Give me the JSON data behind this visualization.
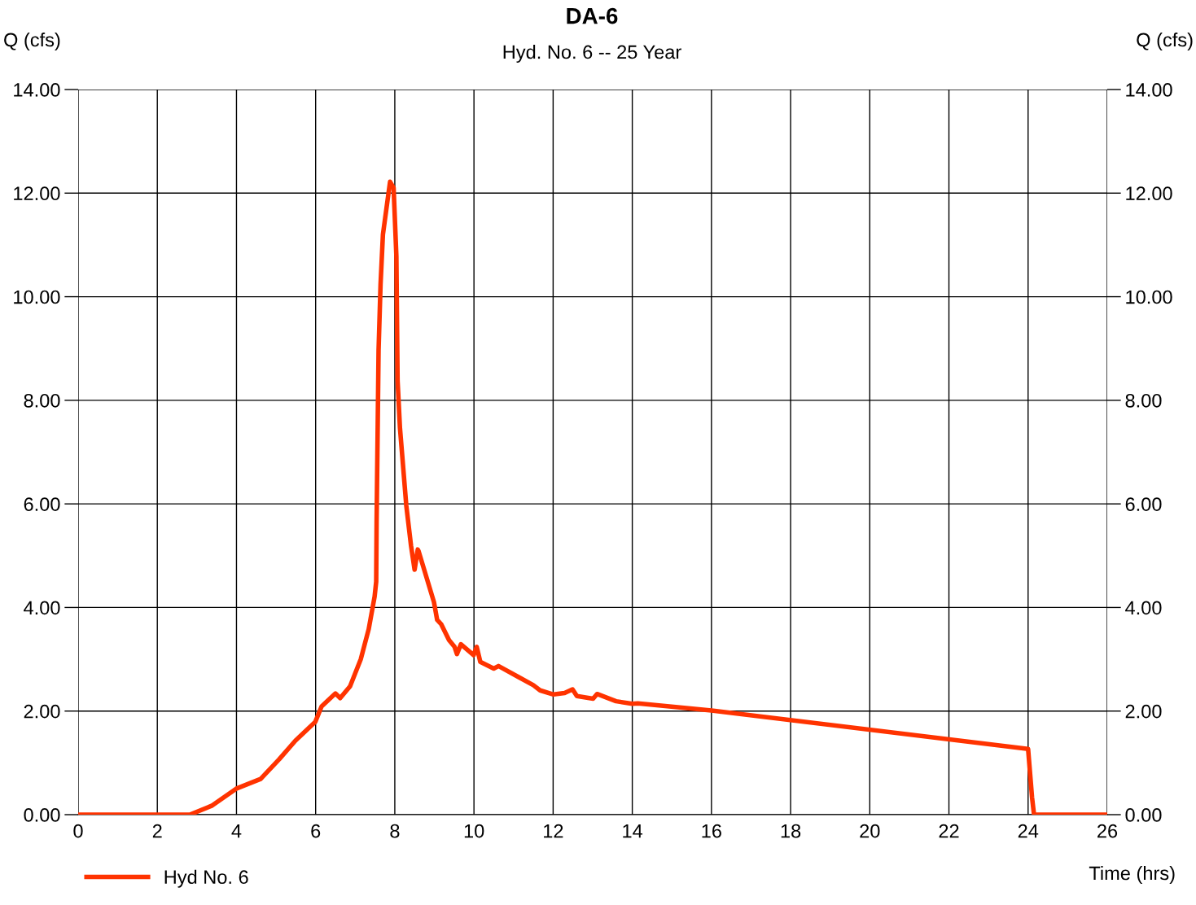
{
  "chart_data": {
    "type": "line",
    "title": "DA-6",
    "subtitle": "Hyd. No. 6 -- 25 Year",
    "xlabel": "Time (hrs)",
    "ylabel": "Q (cfs)",
    "y2label": "Q (cfs)",
    "xlim": [
      0,
      26
    ],
    "xticks": [
      0,
      2,
      4,
      6,
      8,
      10,
      12,
      14,
      16,
      18,
      20,
      22,
      24,
      26
    ],
    "ylim": [
      0,
      14
    ],
    "yticks": [
      {
        "value": 0,
        "label": "0.00"
      },
      {
        "value": 2,
        "label": "2.00"
      },
      {
        "value": 4,
        "label": "4.00"
      },
      {
        "value": 6,
        "label": "6.00"
      },
      {
        "value": 8,
        "label": "8.00"
      },
      {
        "value": 10,
        "label": "10.00"
      },
      {
        "value": 12,
        "label": "12.00"
      },
      {
        "value": 14,
        "label": "14.00"
      }
    ],
    "y2lim": [
      0,
      14
    ],
    "y2ticks": [
      {
        "value": 0,
        "label": "0.00"
      },
      {
        "value": 2,
        "label": "2.00"
      },
      {
        "value": 4,
        "label": "4.00"
      },
      {
        "value": 6,
        "label": "6.00"
      },
      {
        "value": 8,
        "label": "8.00"
      },
      {
        "value": 10,
        "label": "10.00"
      },
      {
        "value": 12,
        "label": "12.00"
      },
      {
        "value": 14,
        "label": "14.00"
      }
    ],
    "grid": true,
    "legend": "bottom left",
    "marker": "none",
    "line_style": "solid",
    "series": [
      {
        "name": "Hyd No. 6",
        "color": "#ff3300",
        "x": [
          0,
          2.82,
          3.37,
          3.99,
          4.61,
          5.08,
          5.49,
          5.99,
          6.15,
          6.5,
          6.62,
          6.87,
          7.14,
          7.34,
          7.49,
          7.53,
          7.54,
          7.59,
          7.64,
          7.7,
          7.88,
          7.97,
          8.04,
          8.07,
          8.13,
          8.29,
          8.41,
          8.5,
          8.58,
          8.6,
          8.99,
          9.07,
          9.17,
          9.37,
          9.51,
          9.57,
          9.67,
          9.99,
          10.07,
          10.16,
          10.5,
          10.62,
          11.12,
          11.5,
          11.67,
          12.01,
          12.29,
          12.49,
          12.6,
          13.01,
          13.11,
          13.59,
          14.0,
          14.14,
          16.0,
          24.0,
          24.1,
          24.15,
          26
        ],
        "values": [
          0,
          0,
          0.17,
          0.5,
          0.69,
          1.07,
          1.43,
          1.79,
          2.09,
          2.34,
          2.25,
          2.48,
          3.0,
          3.58,
          4.21,
          4.5,
          5.66,
          8.97,
          10.24,
          11.2,
          12.22,
          12.1,
          10.78,
          8.38,
          7.47,
          5.97,
          5.19,
          4.73,
          5.12,
          5.09,
          4.1,
          3.76,
          3.68,
          3.37,
          3.24,
          3.1,
          3.29,
          3.08,
          3.24,
          2.95,
          2.82,
          2.87,
          2.66,
          2.5,
          2.4,
          2.32,
          2.35,
          2.42,
          2.29,
          2.24,
          2.33,
          2.19,
          2.14,
          2.15,
          2.01,
          1.27,
          0.33,
          0,
          0
        ]
      }
    ]
  }
}
